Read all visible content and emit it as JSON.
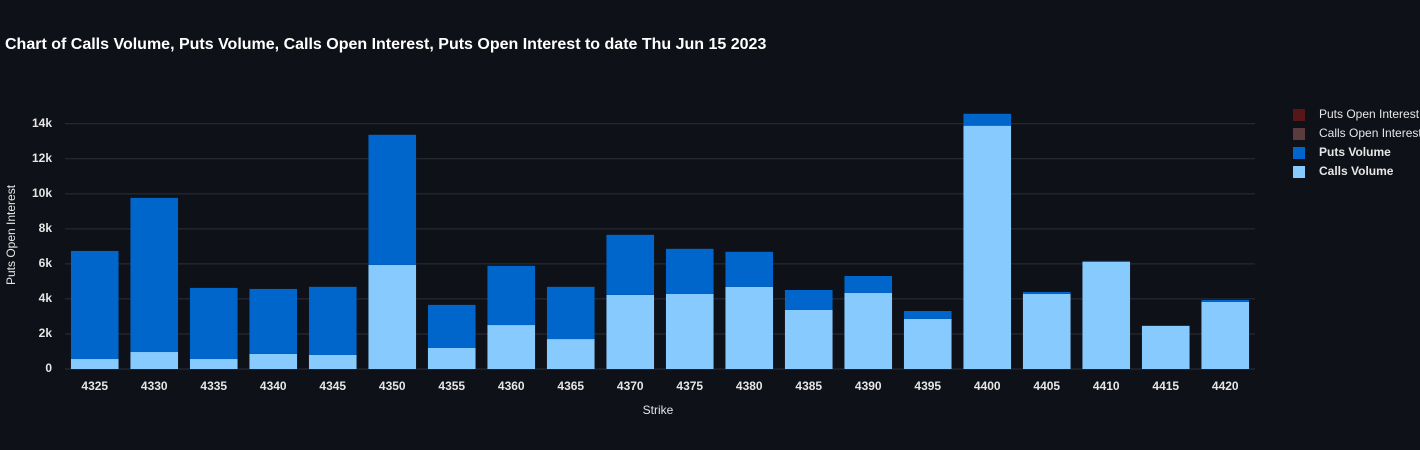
{
  "chart_data": {
    "type": "bar",
    "stacked": true,
    "title": "Chart of Calls Volume, Puts Volume, Calls Open Interest, Puts Open Interest to date Thu Jun 15 2023",
    "x_label": "Strike",
    "y_label": "Puts Open Interest",
    "categories": [
      "4325",
      "4330",
      "4335",
      "4340",
      "4345",
      "4350",
      "4355",
      "4360",
      "4365",
      "4370",
      "4375",
      "4380",
      "4385",
      "4390",
      "4395",
      "4400",
      "4405",
      "4410",
      "4415",
      "4420"
    ],
    "series": [
      {
        "name": "Calls Volume",
        "color": "#87cafe",
        "visible": true,
        "values": [
          570,
          970,
          570,
          860,
          800,
          5940,
          1200,
          2510,
          1710,
          4230,
          4290,
          4690,
          3370,
          4340,
          2860,
          13890,
          4290,
          6110,
          2460,
          3830
        ]
      },
      {
        "name": "Puts Volume",
        "color": "#0066cc",
        "visible": true,
        "values": [
          6170,
          8800,
          4060,
          3710,
          3890,
          7430,
          2460,
          3380,
          2980,
          3430,
          2570,
          2000,
          1140,
          970,
          450,
          680,
          110,
          60,
          20,
          110
        ]
      },
      {
        "name": "Calls Open Interest",
        "color": "#8c5a5a",
        "visible": false
      },
      {
        "name": "Puts Open Interest",
        "color": "#8b1a1a",
        "visible": false
      }
    ],
    "ylim": [
      0,
      14900
    ],
    "yticks": [
      0,
      {
        "value": 2000,
        "label": "2k"
      },
      {
        "value": 4000,
        "label": "4k"
      },
      {
        "value": 6000,
        "label": "6k"
      },
      {
        "value": 8000,
        "label": "8k"
      },
      {
        "value": 10000,
        "label": "10k"
      },
      {
        "value": 12000,
        "label": "12k"
      },
      {
        "value": 14000,
        "label": "14k"
      }
    ],
    "grid": true
  }
}
